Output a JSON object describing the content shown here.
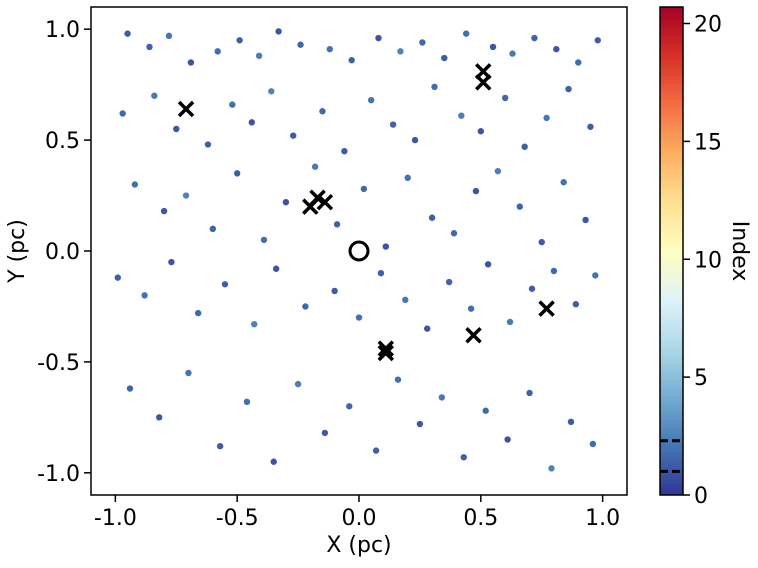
{
  "chart_data": {
    "type": "scatter",
    "xlabel": "X (pc)",
    "ylabel": "Y (pc)",
    "xlim": [
      -1.1,
      1.1
    ],
    "ylim": [
      -1.1,
      1.1
    ],
    "xticks": [
      {
        "value": -1,
        "label": "-1.0"
      },
      {
        "value": -0.5,
        "label": "-0.5"
      },
      {
        "value": 0,
        "label": "0.0"
      },
      {
        "value": 0.5,
        "label": "0.5"
      },
      {
        "value": 1,
        "label": "1.0"
      }
    ],
    "yticks": [
      {
        "value": -1,
        "label": "-1.0"
      },
      {
        "value": -0.5,
        "label": "-0.5"
      },
      {
        "value": 0,
        "label": "0.0"
      },
      {
        "value": 0.5,
        "label": "0.5"
      },
      {
        "value": 1,
        "label": "1.0"
      }
    ],
    "colorbar": {
      "label": "Index",
      "lim": [
        0,
        20.7
      ],
      "ticks": [
        0,
        5,
        10,
        15,
        20
      ],
      "lines": [
        1.0,
        2.3
      ],
      "colormap": [
        "#313695",
        "#4575b4",
        "#74add1",
        "#abd9e9",
        "#e0f3f8",
        "#ffffbf",
        "#fee090",
        "#fdae61",
        "#f46d43",
        "#d73027",
        "#a50026"
      ]
    },
    "points": {
      "x": [
        -0.95,
        -0.86,
        -0.78,
        -0.69,
        -0.58,
        -0.49,
        -0.41,
        -0.33,
        -0.24,
        -0.12,
        -0.03,
        0.08,
        0.17,
        0.26,
        0.35,
        0.44,
        0.55,
        0.63,
        0.72,
        0.81,
        0.9,
        0.98,
        -0.97,
        -0.84,
        -0.75,
        -0.62,
        -0.52,
        -0.44,
        -0.36,
        -0.27,
        -0.15,
        -0.06,
        0.05,
        0.14,
        0.23,
        0.31,
        0.42,
        0.5,
        0.6,
        0.68,
        0.77,
        0.86,
        0.95,
        -0.92,
        -0.8,
        -0.71,
        -0.6,
        -0.5,
        -0.39,
        -0.3,
        -0.18,
        -0.09,
        0.02,
        0.11,
        0.2,
        0.3,
        0.39,
        0.48,
        0.57,
        0.66,
        0.75,
        0.84,
        0.93,
        -0.99,
        -0.88,
        -0.77,
        -0.66,
        -0.55,
        -0.43,
        -0.34,
        -0.22,
        -0.1,
        0.0,
        0.09,
        0.19,
        0.28,
        0.37,
        0.46,
        0.53,
        0.62,
        0.71,
        0.8,
        0.89,
        0.97,
        -0.94,
        -0.82,
        -0.7,
        -0.57,
        -0.46,
        -0.35,
        -0.25,
        -0.14,
        -0.04,
        0.07,
        0.16,
        0.25,
        0.34,
        0.43,
        0.52,
        0.61,
        0.7,
        0.79,
        0.87,
        0.96
      ],
      "y": [
        0.98,
        0.92,
        0.97,
        0.85,
        0.9,
        0.95,
        0.88,
        0.99,
        0.93,
        0.91,
        0.86,
        0.96,
        0.9,
        0.94,
        0.87,
        0.98,
        0.92,
        0.89,
        0.96,
        0.91,
        0.85,
        0.95,
        0.62,
        0.7,
        0.55,
        0.48,
        0.66,
        0.58,
        0.72,
        0.52,
        0.63,
        0.45,
        0.68,
        0.57,
        0.5,
        0.74,
        0.61,
        0.54,
        0.69,
        0.47,
        0.6,
        0.73,
        0.56,
        0.3,
        0.18,
        0.25,
        0.1,
        0.35,
        0.05,
        0.22,
        0.38,
        0.12,
        0.28,
        0.02,
        0.33,
        0.15,
        0.08,
        0.27,
        0.36,
        0.2,
        0.04,
        0.31,
        0.14,
        -0.12,
        -0.2,
        -0.05,
        -0.28,
        -0.15,
        -0.33,
        -0.08,
        -0.25,
        -0.18,
        -0.3,
        -0.1,
        -0.22,
        -0.35,
        -0.14,
        -0.26,
        -0.06,
        -0.32,
        -0.17,
        -0.09,
        -0.24,
        -0.11,
        -0.62,
        -0.75,
        -0.55,
        -0.88,
        -0.68,
        -0.95,
        -0.6,
        -0.82,
        -0.7,
        -0.9,
        -0.58,
        -0.78,
        -0.66,
        -0.93,
        -0.72,
        -0.85,
        -0.64,
        -0.98,
        -0.77,
        -0.87
      ],
      "c": [
        1.2,
        1.5,
        2.1,
        1.0,
        1.8,
        1.3,
        2.4,
        1.1,
        1.6,
        2.0,
        1.4,
        1.0,
        2.6,
        1.7,
        1.2,
        1.9,
        1.1,
        2.3,
        1.5,
        1.0,
        1.8,
        1.3,
        1.6,
        2.2,
        1.1,
        1.4,
        1.9,
        1.0,
        2.5,
        1.3,
        1.7,
        1.2,
        2.0,
        1.5,
        1.1,
        1.8,
        2.4,
        1.0,
        1.6,
        1.3,
        2.1,
        1.4,
        1.2,
        1.9,
        1.1,
        2.6,
        1.5,
        1.2,
        1.8,
        1.0,
        2.2,
        1.4,
        1.6,
        1.1,
        2.0,
        1.3,
        1.7,
        1.0,
        2.4,
        1.5,
        1.2,
        1.9,
        1.1,
        1.4,
        2.0,
        1.1,
        1.7,
        1.3,
        2.5,
        1.0,
        1.6,
        1.2,
        1.9,
        1.4,
        2.2,
        1.1,
        1.5,
        1.8,
        1.0,
        2.3,
        1.3,
        1.6,
        1.2,
        2.0,
        1.5,
        1.1,
        2.1,
        1.3,
        1.8,
        1.0,
        2.4,
        1.2,
        1.6,
        1.4,
        1.9,
        1.1,
        2.2,
        1.3,
        1.7,
        1.0,
        1.5,
        2.6,
        1.2,
        1.8
      ]
    },
    "crosses": {
      "x": [
        -0.71,
        0.51,
        0.51,
        -0.2,
        -0.17,
        -0.14,
        0.11,
        0.11,
        0.47,
        0.77
      ],
      "y": [
        0.64,
        0.81,
        0.76,
        0.2,
        0.24,
        0.22,
        -0.44,
        -0.46,
        -0.38,
        -0.26
      ]
    },
    "circle": {
      "x": [
        0
      ],
      "y": [
        0
      ]
    }
  }
}
